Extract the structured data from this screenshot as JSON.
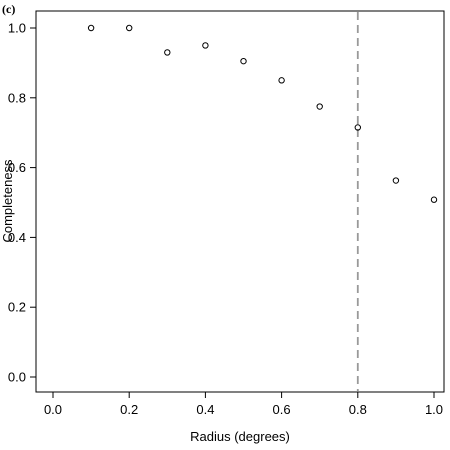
{
  "panel_label": "(c)",
  "chart_data": {
    "type": "scatter",
    "title": "",
    "xlabel": "Radius (degrees)",
    "ylabel": "Completeness",
    "xlim": [
      0.0,
      1.0
    ],
    "ylim": [
      0.0,
      1.0
    ],
    "xticks": [
      "0.0",
      "0.2",
      "0.4",
      "0.6",
      "0.8",
      "1.0"
    ],
    "yticks": [
      "0.0",
      "0.2",
      "0.4",
      "0.6",
      "0.8",
      "1.0"
    ],
    "grid": false,
    "legend": "none",
    "marker": "open-circle",
    "x": [
      0.1,
      0.2,
      0.3,
      0.4,
      0.5,
      0.6,
      0.7,
      0.8,
      0.9,
      1.0
    ],
    "y": [
      1.0,
      1.0,
      0.93,
      0.95,
      0.905,
      0.85,
      0.775,
      0.715,
      0.563,
      0.508
    ],
    "vline": {
      "x": 0.8,
      "style": "dashed",
      "color": "#999999"
    }
  }
}
